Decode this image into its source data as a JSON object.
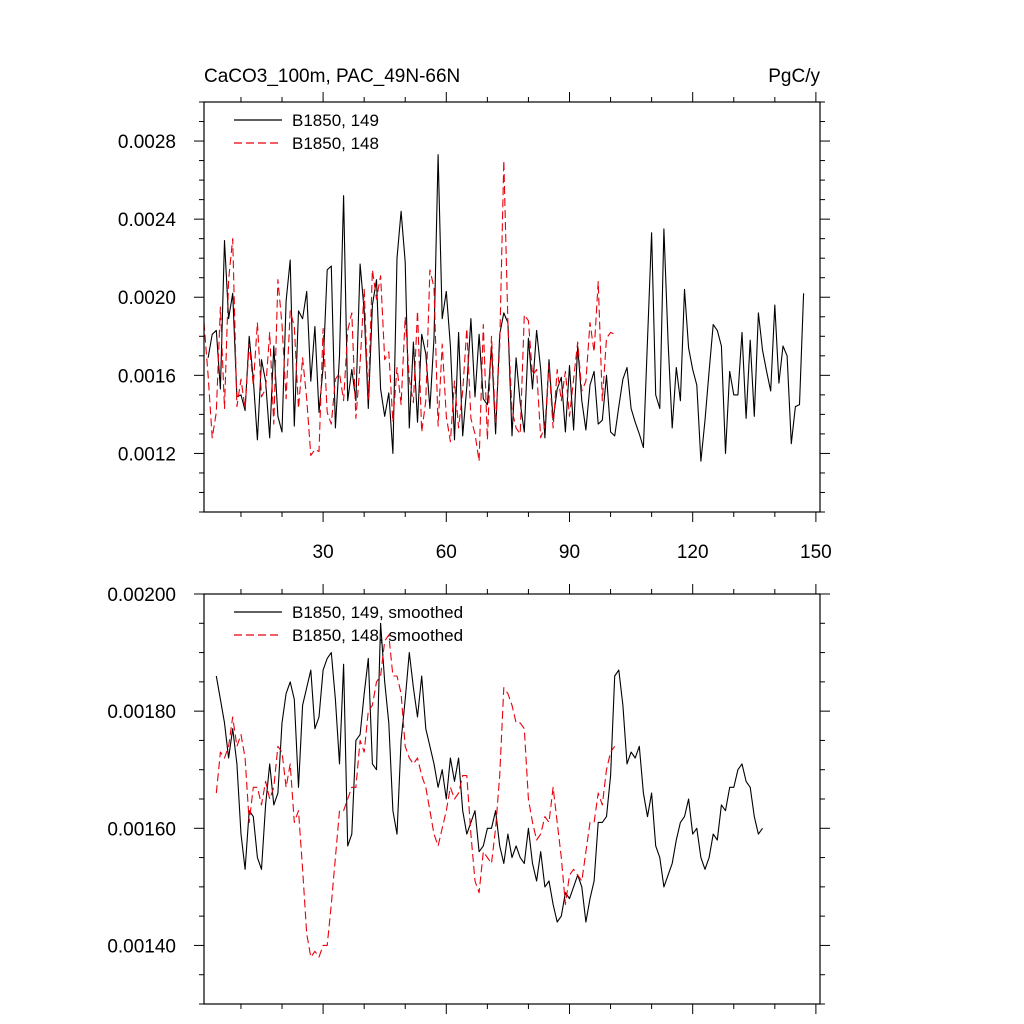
{
  "chart_data": [
    {
      "type": "line",
      "title_left": "CaCO3_100m, PAC_49N-66N",
      "title_right": "PgC/y",
      "xlim": [
        1,
        151
      ],
      "ylim": [
        0.0009,
        0.003
      ],
      "xticks": [
        30,
        60,
        90,
        120,
        150
      ],
      "xtick_labels": [
        "30",
        "60",
        "90",
        "120",
        "150"
      ],
      "yticks": [
        0.0012,
        0.0016,
        0.002,
        0.0024,
        0.0028
      ],
      "ytick_labels": [
        "0.0012",
        "0.0016",
        "0.0020",
        "0.0024",
        "0.0028"
      ],
      "legend_position": "top-left",
      "series": [
        {
          "name": "B1850, 149",
          "color": "#000000",
          "dash": "solid",
          "x_start": 2,
          "values": [
            0.00169,
            0.00181,
            0.00183,
            0.00153,
            0.00229,
            0.00189,
            0.00202,
            0.00149,
            0.0015,
            0.00142,
            0.0018,
            0.00158,
            0.00127,
            0.00168,
            0.00157,
            0.00128,
            0.00175,
            0.00139,
            0.00131,
            0.00198,
            0.00219,
            0.00134,
            0.00193,
            0.00189,
            0.00203,
            0.00157,
            0.00185,
            0.00141,
            0.00164,
            0.00214,
            0.00216,
            0.00133,
            0.0017,
            0.00252,
            0.00147,
            0.00163,
            0.00147,
            0.00217,
            0.00193,
            0.00143,
            0.00196,
            0.00209,
            0.00153,
            0.00139,
            0.00151,
            0.0012,
            0.0022,
            0.00244,
            0.00218,
            0.00133,
            0.00177,
            0.00136,
            0.00181,
            0.00171,
            0.00143,
            0.00179,
            0.00273,
            0.00189,
            0.00203,
            0.00175,
            0.00127,
            0.00182,
            0.00129,
            0.00154,
            0.00189,
            0.00149,
            0.00181,
            0.00148,
            0.00145,
            0.00175,
            0.0013,
            0.00181,
            0.00192,
            0.00187,
            0.00129,
            0.00169,
            0.00146,
            0.00131,
            0.00179,
            0.00153,
            0.00183,
            0.00163,
            0.00128,
            0.00168,
            0.00137,
            0.00153,
            0.00159,
            0.00131,
            0.00165,
            0.00132,
            0.00175,
            0.00147,
            0.00132,
            0.00155,
            0.00162,
            0.00135,
            0.00137,
            0.0016,
            0.00131,
            0.00129,
            0.00144,
            0.00158,
            0.00164,
            0.00143,
            0.00136,
            0.0013,
            0.00123,
            0.00178,
            0.00233,
            0.0015,
            0.00143,
            0.00235,
            0.00177,
            0.00133,
            0.00164,
            0.00147,
            0.00204,
            0.00174,
            0.00163,
            0.00155,
            0.00116,
            0.00137,
            0.00162,
            0.00186,
            0.00183,
            0.00175,
            0.0012,
            0.00162,
            0.0015,
            0.0015,
            0.00182,
            0.00138,
            0.00178,
            0.00139,
            0.00192,
            0.00173,
            0.00162,
            0.00152,
            0.00196,
            0.00156,
            0.00175,
            0.0017,
            0.00125,
            0.00144,
            0.00145,
            0.00202
          ]
        },
        {
          "name": "B1850, 148",
          "color": "#e8000b",
          "dash": "dashed",
          "x_start": 1,
          "values": [
            0.00187,
            0.0016,
            0.00128,
            0.00141,
            0.00195,
            0.00143,
            0.00209,
            0.0023,
            0.00144,
            0.00158,
            0.00143,
            0.00176,
            0.00155,
            0.00187,
            0.00149,
            0.00153,
            0.00182,
            0.00135,
            0.00209,
            0.00186,
            0.00148,
            0.00193,
            0.00185,
            0.00143,
            0.00169,
            0.00148,
            0.00119,
            0.00122,
            0.00121,
            0.00184,
            0.00141,
            0.00135,
            0.00158,
            0.00161,
            0.00147,
            0.00183,
            0.00192,
            0.00138,
            0.00166,
            0.00204,
            0.00148,
            0.00214,
            0.00199,
            0.00211,
            0.00168,
            0.00172,
            0.00136,
            0.00164,
            0.00145,
            0.0019,
            0.00158,
            0.00146,
            0.00193,
            0.00131,
            0.00147,
            0.00214,
            0.00205,
            0.00134,
            0.00176,
            0.00139,
            0.00126,
            0.00157,
            0.00133,
            0.00152,
            0.00184,
            0.00138,
            0.0013,
            0.00116,
            0.00186,
            0.00127,
            0.0018,
            0.00135,
            0.00175,
            0.0027,
            0.00187,
            0.00142,
            0.00133,
            0.0013,
            0.00191,
            0.00188,
            0.0016,
            0.00163,
            0.00128,
            0.00134,
            0.00165,
            0.00133,
            0.00163,
            0.00147,
            0.00162,
            0.00139,
            0.00158,
            0.00177,
            0.00152,
            0.00157,
            0.00187,
            0.00172,
            0.00208,
            0.00147,
            0.00179,
            0.00182,
            0.00181
          ]
        }
      ]
    },
    {
      "type": "line",
      "xlim": [
        1,
        151
      ],
      "ylim": [
        0.0013,
        0.002
      ],
      "xticks": [
        30,
        60,
        90,
        120,
        150
      ],
      "yticks": [
        0.0014,
        0.0016,
        0.0018,
        0.002
      ],
      "ytick_labels": [
        "0.00140",
        "0.00160",
        "0.00180",
        "0.00200"
      ],
      "legend_position": "top-left",
      "series": [
        {
          "name": "B1850, 149, smoothed",
          "color": "#000000",
          "dash": "solid",
          "x_start": 4,
          "values": [
            0.00186,
            0.00182,
            0.00178,
            0.00172,
            0.00177,
            0.00171,
            0.00159,
            0.00153,
            0.00163,
            0.00162,
            0.00155,
            0.00153,
            0.00164,
            0.00171,
            0.00164,
            0.00166,
            0.00178,
            0.00183,
            0.00185,
            0.00182,
            0.00167,
            0.00181,
            0.00184,
            0.00187,
            0.00177,
            0.00179,
            0.00187,
            0.00189,
            0.0019,
            0.00182,
            0.00171,
            0.00188,
            0.00157,
            0.00159,
            0.00175,
            0.00176,
            0.00183,
            0.00189,
            0.00171,
            0.0017,
            0.00195,
            0.00185,
            0.00178,
            0.00163,
            0.00159,
            0.00175,
            0.00182,
            0.0019,
            0.00184,
            0.00179,
            0.00186,
            0.00177,
            0.00174,
            0.00171,
            0.00167,
            0.0017,
            0.00165,
            0.00172,
            0.00168,
            0.00172,
            0.00163,
            0.00159,
            0.00161,
            0.00163,
            0.00156,
            0.00157,
            0.0016,
            0.0016,
            0.00163,
            0.00157,
            0.00154,
            0.00159,
            0.00155,
            0.00157,
            0.00155,
            0.00154,
            0.0016,
            0.00154,
            0.00151,
            0.00156,
            0.0015,
            0.00151,
            0.00147,
            0.00144,
            0.00145,
            0.00149,
            0.00148,
            0.0015,
            0.00152,
            0.0015,
            0.00144,
            0.00148,
            0.00151,
            0.00161,
            0.00161,
            0.00162,
            0.00169,
            0.00186,
            0.00187,
            0.00181,
            0.00171,
            0.00173,
            0.00172,
            0.00174,
            0.00166,
            0.00162,
            0.00166,
            0.00157,
            0.00155,
            0.0015,
            0.00152,
            0.00154,
            0.00158,
            0.00161,
            0.00162,
            0.00165,
            0.00159,
            0.0016,
            0.00155,
            0.00153,
            0.00155,
            0.00159,
            0.00158,
            0.00164,
            0.00163,
            0.00167,
            0.00167,
            0.0017,
            0.00171,
            0.00168,
            0.00167,
            0.00162,
            0.00159,
            0.0016
          ]
        },
        {
          "name": "B1850, 148, smoothed",
          "color": "#e8000b",
          "dash": "dashed",
          "x_start": 4,
          "values": [
            0.00166,
            0.00173,
            0.00172,
            0.00174,
            0.00179,
            0.00174,
            0.00176,
            0.00172,
            0.00161,
            0.00167,
            0.00167,
            0.00164,
            0.00168,
            0.00165,
            0.00167,
            0.00174,
            0.00173,
            0.00167,
            0.00171,
            0.00161,
            0.00163,
            0.00153,
            0.00142,
            0.00138,
            0.00139,
            0.00138,
            0.0014,
            0.0014,
            0.00147,
            0.00155,
            0.00163,
            0.00163,
            0.00165,
            0.00167,
            0.00167,
            0.00175,
            0.00173,
            0.0018,
            0.00181,
            0.00185,
            0.00186,
            0.00192,
            0.00193,
            0.00186,
            0.00186,
            0.00183,
            0.00174,
            0.00172,
            0.00171,
            0.00172,
            0.00169,
            0.00167,
            0.00163,
            0.00159,
            0.00157,
            0.0016,
            0.00163,
            0.00167,
            0.00165,
            0.00166,
            0.00169,
            0.00169,
            0.00159,
            0.00151,
            0.00149,
            0.00156,
            0.00155,
            0.00154,
            0.0016,
            0.00169,
            0.00184,
            0.00183,
            0.00181,
            0.00178,
            0.00178,
            0.00177,
            0.00165,
            0.00161,
            0.00158,
            0.00159,
            0.00162,
            0.00161,
            0.00167,
            0.00161,
            0.00155,
            0.00147,
            0.00152,
            0.00153,
            0.00152,
            0.00151,
            0.00156,
            0.00161,
            0.00161,
            0.00166,
            0.00164,
            0.0017,
            0.00173,
            0.00174
          ]
        }
      ]
    }
  ]
}
